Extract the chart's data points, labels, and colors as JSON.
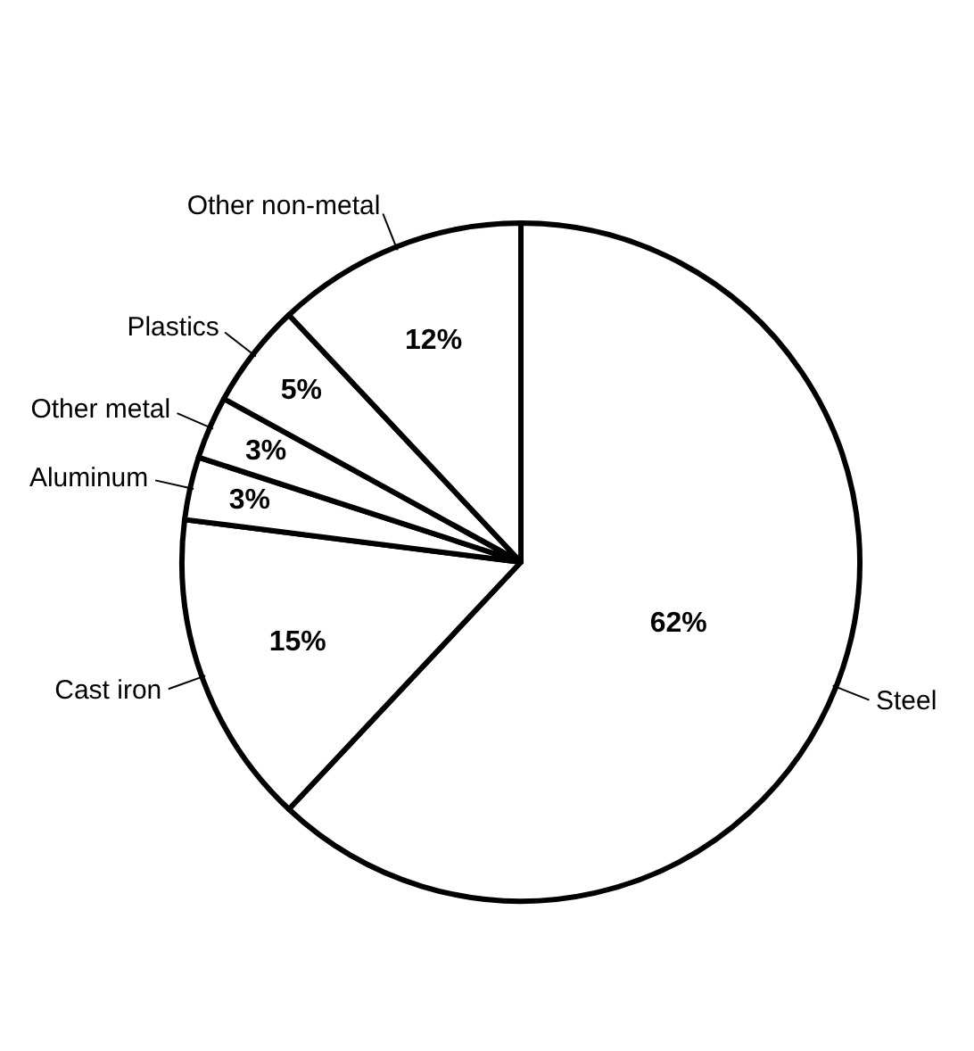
{
  "chart_data": {
    "type": "pie",
    "categories": [
      "Steel",
      "Cast iron",
      "Aluminum",
      "Other metal",
      "Plastics",
      "Other non-metal"
    ],
    "values": [
      62,
      15,
      3,
      3,
      5,
      12
    ],
    "colors": [
      "#ffffff",
      "#ffffff",
      "#ffffff",
      "#ffffff",
      "#ffffff",
      "#ffffff"
    ],
    "value_labels": [
      "62%",
      "15%",
      "3%",
      "3%",
      "5%",
      "12%"
    ]
  }
}
